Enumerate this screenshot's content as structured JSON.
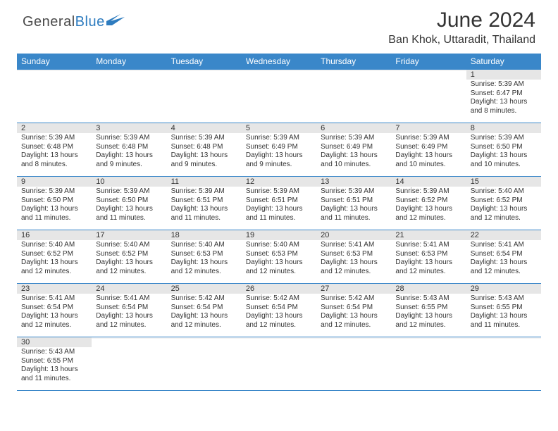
{
  "logo": {
    "part1": "General",
    "part2": "Blue"
  },
  "title": "June 2024",
  "location": "Ban Khok, Uttaradit, Thailand",
  "colors": {
    "header_bg": "#3a87c9",
    "header_text": "#ffffff",
    "daynum_bg": "#e6e6e6",
    "border": "#3a87c9",
    "text": "#333333",
    "logo_blue": "#2e7cbf"
  },
  "weekdays": [
    "Sunday",
    "Monday",
    "Tuesday",
    "Wednesday",
    "Thursday",
    "Friday",
    "Saturday"
  ],
  "weeks": [
    [
      {
        "day": "",
        "sunrise": "",
        "sunset": "",
        "daylight": ""
      },
      {
        "day": "",
        "sunrise": "",
        "sunset": "",
        "daylight": ""
      },
      {
        "day": "",
        "sunrise": "",
        "sunset": "",
        "daylight": ""
      },
      {
        "day": "",
        "sunrise": "",
        "sunset": "",
        "daylight": ""
      },
      {
        "day": "",
        "sunrise": "",
        "sunset": "",
        "daylight": ""
      },
      {
        "day": "",
        "sunrise": "",
        "sunset": "",
        "daylight": ""
      },
      {
        "day": "1",
        "sunrise": "Sunrise: 5:39 AM",
        "sunset": "Sunset: 6:47 PM",
        "daylight": "Daylight: 13 hours and 8 minutes."
      }
    ],
    [
      {
        "day": "2",
        "sunrise": "Sunrise: 5:39 AM",
        "sunset": "Sunset: 6:48 PM",
        "daylight": "Daylight: 13 hours and 8 minutes."
      },
      {
        "day": "3",
        "sunrise": "Sunrise: 5:39 AM",
        "sunset": "Sunset: 6:48 PM",
        "daylight": "Daylight: 13 hours and 9 minutes."
      },
      {
        "day": "4",
        "sunrise": "Sunrise: 5:39 AM",
        "sunset": "Sunset: 6:48 PM",
        "daylight": "Daylight: 13 hours and 9 minutes."
      },
      {
        "day": "5",
        "sunrise": "Sunrise: 5:39 AM",
        "sunset": "Sunset: 6:49 PM",
        "daylight": "Daylight: 13 hours and 9 minutes."
      },
      {
        "day": "6",
        "sunrise": "Sunrise: 5:39 AM",
        "sunset": "Sunset: 6:49 PM",
        "daylight": "Daylight: 13 hours and 10 minutes."
      },
      {
        "day": "7",
        "sunrise": "Sunrise: 5:39 AM",
        "sunset": "Sunset: 6:49 PM",
        "daylight": "Daylight: 13 hours and 10 minutes."
      },
      {
        "day": "8",
        "sunrise": "Sunrise: 5:39 AM",
        "sunset": "Sunset: 6:50 PM",
        "daylight": "Daylight: 13 hours and 10 minutes."
      }
    ],
    [
      {
        "day": "9",
        "sunrise": "Sunrise: 5:39 AM",
        "sunset": "Sunset: 6:50 PM",
        "daylight": "Daylight: 13 hours and 11 minutes."
      },
      {
        "day": "10",
        "sunrise": "Sunrise: 5:39 AM",
        "sunset": "Sunset: 6:50 PM",
        "daylight": "Daylight: 13 hours and 11 minutes."
      },
      {
        "day": "11",
        "sunrise": "Sunrise: 5:39 AM",
        "sunset": "Sunset: 6:51 PM",
        "daylight": "Daylight: 13 hours and 11 minutes."
      },
      {
        "day": "12",
        "sunrise": "Sunrise: 5:39 AM",
        "sunset": "Sunset: 6:51 PM",
        "daylight": "Daylight: 13 hours and 11 minutes."
      },
      {
        "day": "13",
        "sunrise": "Sunrise: 5:39 AM",
        "sunset": "Sunset: 6:51 PM",
        "daylight": "Daylight: 13 hours and 11 minutes."
      },
      {
        "day": "14",
        "sunrise": "Sunrise: 5:39 AM",
        "sunset": "Sunset: 6:52 PM",
        "daylight": "Daylight: 13 hours and 12 minutes."
      },
      {
        "day": "15",
        "sunrise": "Sunrise: 5:40 AM",
        "sunset": "Sunset: 6:52 PM",
        "daylight": "Daylight: 13 hours and 12 minutes."
      }
    ],
    [
      {
        "day": "16",
        "sunrise": "Sunrise: 5:40 AM",
        "sunset": "Sunset: 6:52 PM",
        "daylight": "Daylight: 13 hours and 12 minutes."
      },
      {
        "day": "17",
        "sunrise": "Sunrise: 5:40 AM",
        "sunset": "Sunset: 6:52 PM",
        "daylight": "Daylight: 13 hours and 12 minutes."
      },
      {
        "day": "18",
        "sunrise": "Sunrise: 5:40 AM",
        "sunset": "Sunset: 6:53 PM",
        "daylight": "Daylight: 13 hours and 12 minutes."
      },
      {
        "day": "19",
        "sunrise": "Sunrise: 5:40 AM",
        "sunset": "Sunset: 6:53 PM",
        "daylight": "Daylight: 13 hours and 12 minutes."
      },
      {
        "day": "20",
        "sunrise": "Sunrise: 5:41 AM",
        "sunset": "Sunset: 6:53 PM",
        "daylight": "Daylight: 13 hours and 12 minutes."
      },
      {
        "day": "21",
        "sunrise": "Sunrise: 5:41 AM",
        "sunset": "Sunset: 6:53 PM",
        "daylight": "Daylight: 13 hours and 12 minutes."
      },
      {
        "day": "22",
        "sunrise": "Sunrise: 5:41 AM",
        "sunset": "Sunset: 6:54 PM",
        "daylight": "Daylight: 13 hours and 12 minutes."
      }
    ],
    [
      {
        "day": "23",
        "sunrise": "Sunrise: 5:41 AM",
        "sunset": "Sunset: 6:54 PM",
        "daylight": "Daylight: 13 hours and 12 minutes."
      },
      {
        "day": "24",
        "sunrise": "Sunrise: 5:41 AM",
        "sunset": "Sunset: 6:54 PM",
        "daylight": "Daylight: 13 hours and 12 minutes."
      },
      {
        "day": "25",
        "sunrise": "Sunrise: 5:42 AM",
        "sunset": "Sunset: 6:54 PM",
        "daylight": "Daylight: 13 hours and 12 minutes."
      },
      {
        "day": "26",
        "sunrise": "Sunrise: 5:42 AM",
        "sunset": "Sunset: 6:54 PM",
        "daylight": "Daylight: 13 hours and 12 minutes."
      },
      {
        "day": "27",
        "sunrise": "Sunrise: 5:42 AM",
        "sunset": "Sunset: 6:54 PM",
        "daylight": "Daylight: 13 hours and 12 minutes."
      },
      {
        "day": "28",
        "sunrise": "Sunrise: 5:43 AM",
        "sunset": "Sunset: 6:55 PM",
        "daylight": "Daylight: 13 hours and 12 minutes."
      },
      {
        "day": "29",
        "sunrise": "Sunrise: 5:43 AM",
        "sunset": "Sunset: 6:55 PM",
        "daylight": "Daylight: 13 hours and 11 minutes."
      }
    ],
    [
      {
        "day": "30",
        "sunrise": "Sunrise: 5:43 AM",
        "sunset": "Sunset: 6:55 PM",
        "daylight": "Daylight: 13 hours and 11 minutes."
      },
      {
        "day": "",
        "sunrise": "",
        "sunset": "",
        "daylight": ""
      },
      {
        "day": "",
        "sunrise": "",
        "sunset": "",
        "daylight": ""
      },
      {
        "day": "",
        "sunrise": "",
        "sunset": "",
        "daylight": ""
      },
      {
        "day": "",
        "sunrise": "",
        "sunset": "",
        "daylight": ""
      },
      {
        "day": "",
        "sunrise": "",
        "sunset": "",
        "daylight": ""
      },
      {
        "day": "",
        "sunrise": "",
        "sunset": "",
        "daylight": ""
      }
    ]
  ]
}
